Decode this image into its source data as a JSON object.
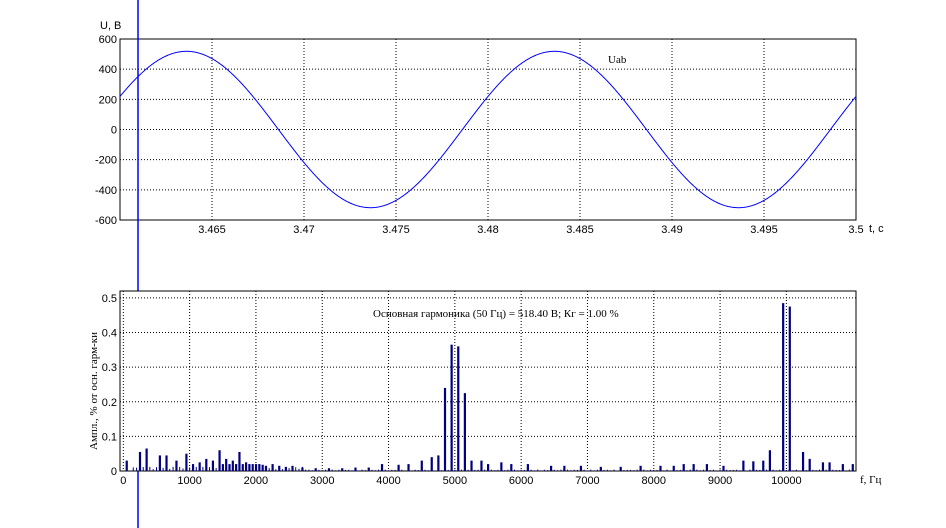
{
  "chart_data": [
    {
      "type": "line",
      "ylabel": "U, В",
      "xlabel": "t, с",
      "xlim": [
        3.46,
        3.5
      ],
      "ylim": [
        -600,
        600
      ],
      "xticks": [
        3.465,
        3.47,
        3.475,
        3.48,
        3.485,
        3.49,
        3.495,
        3.5
      ],
      "xtick_labels": [
        "3.465",
        "3.47",
        "3.475",
        "3.48",
        "3.485",
        "3.49",
        "3.495",
        "3.5"
      ],
      "yticks": [
        600,
        400,
        200,
        0,
        -200,
        -400,
        -600
      ],
      "ytick_labels": [
        "600",
        "400",
        "200",
        "0",
        "-200",
        "-400",
        "-600"
      ],
      "grid": true,
      "series": [
        {
          "name": "Uab",
          "color": "#0000ff",
          "amplitude": 518.4,
          "frequency_hz": 50,
          "phase_deg": 25,
          "t_start": 3.46,
          "t_end": 3.5
        }
      ]
    },
    {
      "type": "bar",
      "ylabel": "Ампл., %  от осн. гарм-ки",
      "xlabel": "f, Гц",
      "annotation": "Основная гармоника (50 Гц) = 518.40 В;  Кг = 1.00 %",
      "xlim": [
        -50,
        11050
      ],
      "ylim": [
        0,
        0.52
      ],
      "xticks": [
        0,
        1000,
        2000,
        3000,
        4000,
        5000,
        6000,
        7000,
        8000,
        9000,
        10000
      ],
      "xtick_labels": [
        "0",
        "1000",
        "2000",
        "3000",
        "4000",
        "5000",
        "6000",
        "7000",
        "8000",
        "9000",
        "10000"
      ],
      "yticks": [
        0,
        0.1,
        0.2,
        0.3,
        0.4,
        0.5
      ],
      "ytick_labels": [
        "0",
        "0.1",
        "0.2",
        "0.3",
        "0.4",
        "0.5"
      ],
      "grid": true,
      "color": "#000080",
      "x": [
        50,
        250,
        350,
        550,
        650,
        800,
        950,
        1050,
        1150,
        1250,
        1350,
        1450,
        1500,
        1550,
        1600,
        1650,
        1700,
        1750,
        1800,
        1850,
        1900,
        1950,
        2000,
        2050,
        2100,
        2150,
        2250,
        2350,
        2450,
        2550,
        2700,
        2900,
        3100,
        3300,
        3500,
        3700,
        3900,
        4150,
        4300,
        4500,
        4650,
        4750,
        4850,
        4950,
        5050,
        5150,
        5250,
        5400,
        5500,
        5700,
        5850,
        6100,
        6450,
        6650,
        6900,
        7200,
        7500,
        7800,
        8100,
        8300,
        8450,
        8600,
        8800,
        9050,
        9350,
        9500,
        9650,
        9750,
        9950,
        10050,
        10250,
        10350,
        10550,
        10650,
        10850,
        11000
      ],
      "values": [
        0.03,
        0.055,
        0.065,
        0.045,
        0.045,
        0.03,
        0.05,
        0.02,
        0.025,
        0.035,
        0.03,
        0.06,
        0.02,
        0.035,
        0.02,
        0.03,
        0.02,
        0.055,
        0.02,
        0.025,
        0.02,
        0.02,
        0.02,
        0.02,
        0.018,
        0.015,
        0.02,
        0.015,
        0.012,
        0.015,
        0.01,
        0.008,
        0.008,
        0.008,
        0.01,
        0.01,
        0.02,
        0.018,
        0.02,
        0.03,
        0.04,
        0.045,
        0.24,
        0.365,
        0.36,
        0.225,
        0.03,
        0.03,
        0.02,
        0.025,
        0.02,
        0.02,
        0.015,
        0.015,
        0.015,
        0.012,
        0.012,
        0.015,
        0.015,
        0.015,
        0.02,
        0.02,
        0.02,
        0.015,
        0.03,
        0.028,
        0.03,
        0.06,
        0.485,
        0.475,
        0.055,
        0.035,
        0.025,
        0.025,
        0.02,
        0.02
      ]
    }
  ]
}
